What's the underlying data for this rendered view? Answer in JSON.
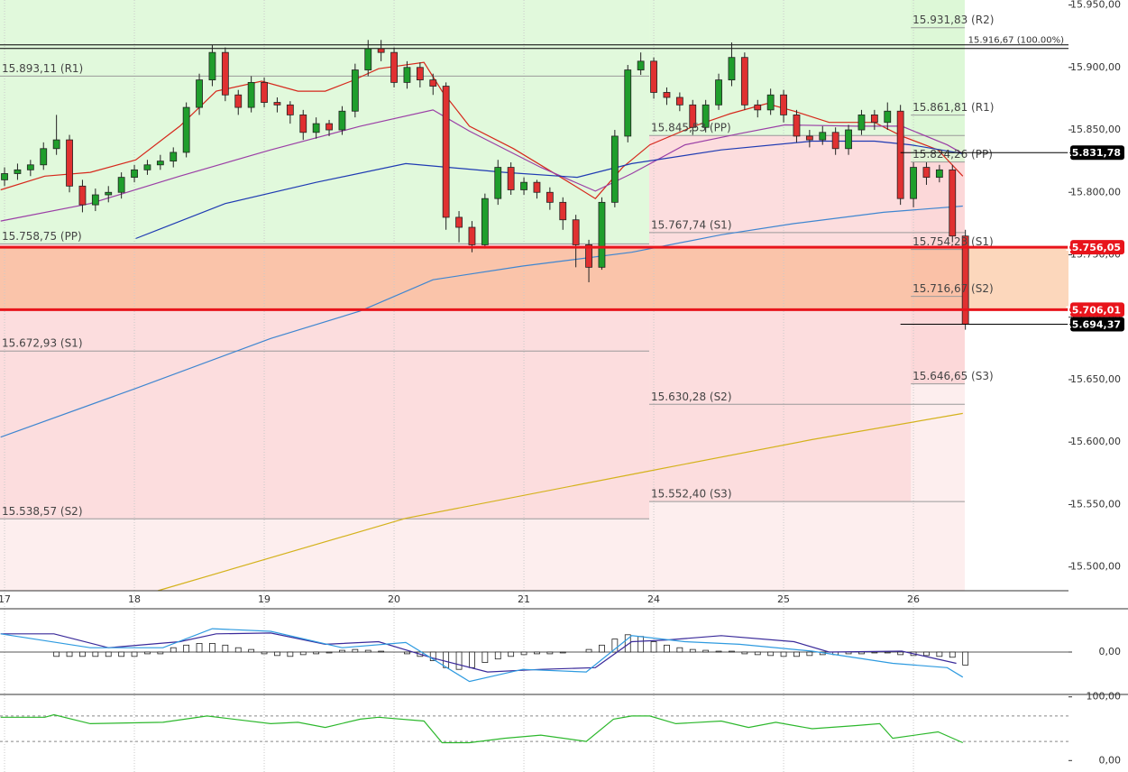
{
  "chart_data": [
    {
      "type": "candlestick",
      "xlim": [
        -0.35,
        81.94
      ],
      "ylim": [
        15481,
        15954
      ],
      "xticks": [
        {
          "value": 0,
          "label": "17"
        },
        {
          "value": 10,
          "label": "18"
        },
        {
          "value": 20,
          "label": "19"
        },
        {
          "value": 30,
          "label": "20"
        },
        {
          "value": 40,
          "label": "21"
        },
        {
          "value": 50,
          "label": "24"
        },
        {
          "value": 60,
          "label": "25"
        },
        {
          "value": 70,
          "label": "26"
        }
      ],
      "yticks": [
        {
          "value": 15500,
          "label": "15.500,00"
        },
        {
          "value": 15550,
          "label": "15.550,00"
        },
        {
          "value": 15600,
          "label": "15.600,00"
        },
        {
          "value": 15650,
          "label": "15.650,00"
        },
        {
          "value": 15700,
          "label": "15.700,00"
        },
        {
          "value": 15750,
          "label": "15.750,00"
        },
        {
          "value": 15800,
          "label": "15.800,00"
        },
        {
          "value": 15850,
          "label": "15.850,00"
        },
        {
          "value": 15900,
          "label": "15.900,00"
        },
        {
          "value": 15950,
          "label": "15.950,00"
        }
      ],
      "grid": true,
      "up_color": "#1f9e2c",
      "down_color": "#e03131",
      "x": [
        0,
        1,
        2,
        3,
        4,
        5,
        6,
        7,
        8,
        9,
        10,
        11,
        12,
        13,
        14,
        15,
        16,
        17,
        18,
        19,
        20,
        21,
        22,
        23,
        24,
        25,
        26,
        27,
        28,
        29,
        30,
        31,
        32,
        33,
        34,
        35,
        36,
        37,
        38,
        39,
        40,
        41,
        42,
        43,
        44,
        45,
        46,
        47,
        48,
        49,
        50,
        51,
        52,
        53,
        54,
        55,
        56,
        57,
        58,
        59,
        60,
        61,
        62,
        63,
        64,
        65,
        66,
        67,
        68,
        69,
        70,
        71,
        72,
        73,
        74
      ],
      "open": [
        15810,
        15815,
        15818,
        15822,
        15835,
        15842,
        15805,
        15790,
        15798,
        15800,
        15812,
        15818,
        15822,
        15825,
        15832,
        15868,
        15890,
        15912,
        15878,
        15868,
        15888,
        15872,
        15870,
        15862,
        15848,
        15855,
        15850,
        15865,
        15898,
        15915,
        15912,
        15888,
        15900,
        15890,
        15885,
        15780,
        15772,
        15758,
        15795,
        15820,
        15802,
        15808,
        15800,
        15792,
        15778,
        15758,
        15740,
        15792,
        15845,
        15898,
        15905,
        15880,
        15876,
        15870,
        15852,
        15870,
        15890,
        15908,
        15870,
        15866,
        15878,
        15862,
        15845,
        15842,
        15848,
        15835,
        15850,
        15862,
        15856,
        15865,
        15795,
        15820,
        15812,
        15818,
        15765
      ],
      "high": [
        15820,
        15823,
        15826,
        15840,
        15862,
        15846,
        15810,
        15803,
        15805,
        15816,
        15822,
        15826,
        15830,
        15836,
        15872,
        15895,
        15918,
        15916,
        15882,
        15893,
        15892,
        15876,
        15873,
        15866,
        15860,
        15858,
        15869,
        15903,
        15922,
        15922,
        15916,
        15905,
        15904,
        15895,
        15888,
        15785,
        15777,
        15799,
        15826,
        15824,
        15812,
        15810,
        15804,
        15796,
        15782,
        15762,
        15796,
        15850,
        15902,
        15912,
        15908,
        15884,
        15880,
        15874,
        15874,
        15895,
        15920,
        15912,
        15874,
        15883,
        15882,
        15866,
        15850,
        15853,
        15852,
        15854,
        15866,
        15866,
        15872,
        15870,
        15824,
        15824,
        15822,
        15822,
        15770
      ],
      "low": [
        15805,
        15810,
        15813,
        15818,
        15830,
        15800,
        15784,
        15785,
        15792,
        15795,
        15808,
        15814,
        15818,
        15820,
        15828,
        15862,
        15885,
        15873,
        15862,
        15864,
        15868,
        15864,
        15855,
        15842,
        15843,
        15845,
        15846,
        15860,
        15893,
        15905,
        15884,
        15883,
        15884,
        15878,
        15770,
        15760,
        15752,
        15755,
        15790,
        15798,
        15798,
        15795,
        15786,
        15770,
        15740,
        15728,
        15738,
        15788,
        15840,
        15894,
        15875,
        15870,
        15865,
        15846,
        15848,
        15866,
        15885,
        15866,
        15860,
        15862,
        15856,
        15840,
        15836,
        15838,
        15830,
        15830,
        15846,
        15850,
        15850,
        15790,
        15788,
        15806,
        15808,
        15760,
        15690
      ],
      "close": [
        15815,
        15818,
        15822,
        15835,
        15842,
        15805,
        15790,
        15798,
        15800,
        15812,
        15818,
        15822,
        15825,
        15832,
        15868,
        15890,
        15912,
        15878,
        15868,
        15888,
        15872,
        15870,
        15862,
        15848,
        15855,
        15850,
        15865,
        15898,
        15915,
        15912,
        15888,
        15900,
        15890,
        15885,
        15780,
        15772,
        15758,
        15795,
        15820,
        15802,
        15808,
        15800,
        15792,
        15778,
        15758,
        15740,
        15792,
        15845,
        15898,
        15905,
        15880,
        15876,
        15870,
        15852,
        15870,
        15890,
        15908,
        15870,
        15866,
        15878,
        15862,
        15845,
        15842,
        15848,
        15835,
        15850,
        15862,
        15856,
        15865,
        15795,
        15820,
        15812,
        15818,
        15765,
        15694.37
      ],
      "series": [
        {
          "color": "#d6281c",
          "x": [
            -0.3,
            3.1,
            6.6,
            10.1,
            13.5,
            16.3,
            19.8,
            22.6,
            24.7,
            26.7,
            28.8,
            32.3,
            33.7,
            35.8,
            39.2,
            42.7,
            45.5,
            47.6,
            49.7,
            53.1,
            55.9,
            58.7,
            60.8,
            63.5,
            67.0,
            69.1,
            71.9,
            73.8
          ],
          "values": [
            15802,
            15813,
            15816,
            15826,
            15853,
            15881,
            15889,
            15881,
            15881,
            15889,
            15899,
            15904,
            15881,
            15853,
            15835,
            15813,
            15795,
            15820,
            15838,
            15853,
            15863,
            15871,
            15865,
            15856,
            15856,
            15845,
            15834,
            15813
          ]
        },
        {
          "color": "#9b3fa6",
          "x": [
            -0.3,
            6.6,
            13.5,
            20.5,
            27.4,
            33.0,
            35.8,
            41.3,
            45.5,
            48.3,
            52.4,
            56.6,
            60.1,
            65.6,
            69.1,
            72.6,
            73.8
          ],
          "values": [
            15777,
            15791,
            15813,
            15834,
            15853,
            15866,
            15849,
            15820,
            15801,
            15815,
            15838,
            15847,
            15854,
            15853,
            15853,
            15838,
            15831
          ]
        },
        {
          "color": "#1f3bb3",
          "x": [
            10.1,
            17.0,
            24.0,
            30.9,
            38.5,
            44.1,
            48.3,
            55.2,
            62.2,
            67.0,
            69.8,
            73.8
          ],
          "values": [
            15763,
            15791,
            15808,
            15823,
            15816,
            15812,
            15823,
            15834,
            15841,
            15841,
            15838,
            15831
          ]
        },
        {
          "color": "#3f86d0",
          "x": [
            -0.3,
            10.1,
            20.5,
            27.4,
            33.0,
            39.9,
            48.3,
            55.2,
            60.8,
            67.7,
            73.8
          ],
          "values": [
            15604,
            15643,
            15683,
            15705,
            15730,
            15741,
            15752,
            15766,
            15775,
            15784,
            15789
          ]
        },
        {
          "color": "#d4b21c",
          "x": [
            11.8,
            30.9,
            49.7,
            62.2,
            73.8
          ],
          "values": [
            15481,
            15539,
            15577,
            15602,
            15623
          ]
        }
      ],
      "pivots": [
        {
          "x": [
            -0.35,
            49.65
          ],
          "levels": [
            {
              "value": 15893.11,
              "label": "15.893,11 (R1)"
            },
            {
              "value": 15758.75,
              "label": "15.758,75 (PP)"
            },
            {
              "value": 15672.93,
              "label": "15.672,93 (S1)"
            },
            {
              "value": 15538.57,
              "label": "15.538,57 (S2)"
            }
          ]
        },
        {
          "x": [
            49.65,
            73.95
          ],
          "levels": [
            {
              "value": 15845.53,
              "label": "15.845,53 (PP)"
            },
            {
              "value": 15767.74,
              "label": "15.767,74 (S1)"
            },
            {
              "value": 15630.28,
              "label": "15.630,28 (S2)"
            },
            {
              "value": 15552.4,
              "label": "15.552,40 (S3)"
            }
          ]
        },
        {
          "x": [
            69.8,
            73.95
          ],
          "levels": [
            {
              "value": 15931.83,
              "label": "15.931,83 (R2)"
            },
            {
              "value": 15861.81,
              "label": "15.861,81 (R1)"
            },
            {
              "value": 15824.26,
              "label": "15.824,26 (PP)"
            },
            {
              "value": 15754.23,
              "label": "15.754,23 (S1)"
            },
            {
              "value": 15716.67,
              "label": "15.716,67 (S2)"
            },
            {
              "value": 15646.65,
              "label": "15.646,65 (S3)"
            }
          ]
        }
      ],
      "lines": [
        {
          "value": 15916.67,
          "label": "15.916,67 (100.00%)"
        }
      ],
      "price_tags": [
        {
          "value": 15831.78,
          "label": "15.831,78",
          "color": "#000000"
        },
        {
          "value": 15756.05,
          "label": "15.756,05",
          "color": "#e8141b"
        },
        {
          "value": 15706.01,
          "label": "15.706,01",
          "color": "#e8141b"
        },
        {
          "value": 15694.37,
          "label": "15.694,37",
          "color": "#000000"
        }
      ]
    },
    {
      "type": "macd",
      "xlim": [
        -0.35,
        81.94
      ],
      "ylim": [
        -50,
        50
      ],
      "yticks": [
        {
          "value": 0,
          "label": "0,00"
        }
      ],
      "histogram": [
        0,
        0,
        0,
        0,
        -5,
        -5,
        -5,
        -5,
        -5,
        -5,
        -5,
        -2,
        -2,
        5,
        8,
        10,
        10,
        8,
        5,
        3,
        -2,
        -4,
        -5,
        -3,
        -2,
        -1,
        2,
        3,
        2,
        1,
        0,
        -2,
        -5,
        -10,
        -18,
        -20,
        -18,
        -12,
        -8,
        -5,
        -3,
        -2,
        -2,
        -1,
        0,
        3,
        8,
        15,
        20,
        18,
        12,
        8,
        5,
        3,
        2,
        1,
        1,
        -2,
        -3,
        -4,
        -5,
        -5,
        -4,
        -3,
        -3,
        -2,
        -2,
        -1,
        -1,
        -3,
        -4,
        -4,
        -5,
        -6,
        -15
      ],
      "series": [
        {
          "color": "#3a2a9a",
          "x": [
            -0.3,
            3.8,
            8.0,
            13.5,
            16.3,
            20.5,
            24.7,
            28.8,
            33.0,
            37.2,
            41.3,
            45.5,
            48.3,
            51.0,
            55.2,
            60.8,
            63.5,
            69.1,
            73.3
          ],
          "values": [
            21,
            21,
            5,
            12,
            21,
            22,
            9,
            12,
            -7,
            -23,
            -20,
            -18,
            12,
            14,
            19,
            12,
            0,
            1,
            -13
          ]
        },
        {
          "color": "#2f9be0",
          "x": [
            -0.3,
            6.6,
            12.2,
            16.0,
            20.5,
            26.0,
            30.9,
            35.8,
            39.9,
            44.8,
            48.3,
            52.4,
            56.6,
            62.2,
            68.4,
            72.6,
            73.8
          ],
          "values": [
            21,
            5,
            5,
            27,
            24,
            5,
            11,
            -34,
            -20,
            -23,
            19,
            12,
            9,
            1,
            -13,
            -18,
            -29
          ]
        }
      ]
    },
    {
      "type": "line",
      "xlim": [
        -0.35,
        81.94
      ],
      "ylim": [
        -18,
        101
      ],
      "yticks": [
        {
          "value": 100,
          "label": "100,00"
        },
        {
          "value": 0,
          "label": "0,00"
        }
      ],
      "levels": [
        70,
        30
      ],
      "series": [
        {
          "color": "#2db82d",
          "x": [
            -0.3,
            3.1,
            3.8,
            6.6,
            12.2,
            15.6,
            20.5,
            22.6,
            24.7,
            27.4,
            28.8,
            32.3,
            33.7,
            35.8,
            38.5,
            41.3,
            44.8,
            46.9,
            48.3,
            49.7,
            51.7,
            55.2,
            57.3,
            59.4,
            62.2,
            65.6,
            67.4,
            68.4,
            71.9,
            73.8
          ],
          "values": [
            68,
            68,
            72,
            58,
            60,
            70,
            58,
            60,
            52,
            65,
            68,
            62,
            28,
            28,
            35,
            40,
            30,
            65,
            70,
            70,
            58,
            62,
            52,
            60,
            50,
            55,
            58,
            35,
            45,
            28
          ]
        }
      ]
    }
  ]
}
